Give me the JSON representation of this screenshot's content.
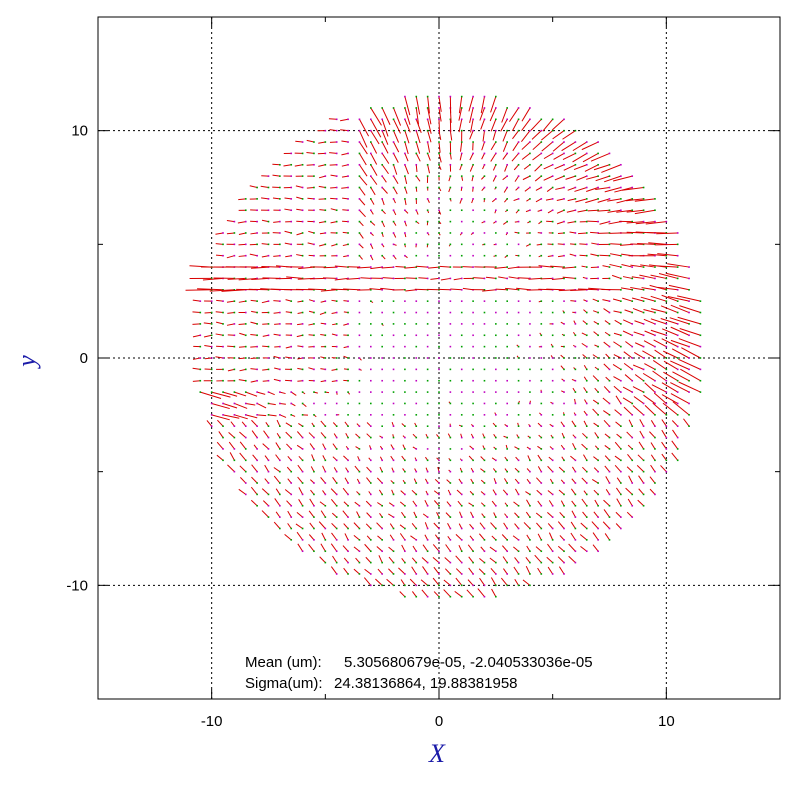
{
  "chart_data": {
    "type": "quiver",
    "xlabel": "X",
    "ylabel": "y",
    "xlim": [
      -15,
      15
    ],
    "ylim": [
      -15,
      15
    ],
    "grid": true,
    "xticks": [
      -10,
      0,
      10
    ],
    "yticks": [
      -10,
      0,
      10
    ],
    "xtick_labels": [
      "-10",
      "0",
      "10"
    ],
    "ytick_labels": [
      "-10",
      "0",
      "10"
    ],
    "field_extent": {
      "center": [
        0.5,
        0.5
      ],
      "radius": 11.2,
      "grid_step": 0.5
    },
    "stats": {
      "mean_label": "Mean (um):",
      "mean_value": "5.305680679e-05, -2.040533036e-05",
      "sigma_label": "Sigma(um):",
      "sigma_value": "24.38136864, 19.88381958"
    },
    "colors": {
      "vector": "#d90000",
      "marker_green": "#00a000",
      "marker_magenta": "#c000c0",
      "axis_label": "#1a1aa8",
      "frame": "#000000",
      "grid": "#000000"
    }
  }
}
